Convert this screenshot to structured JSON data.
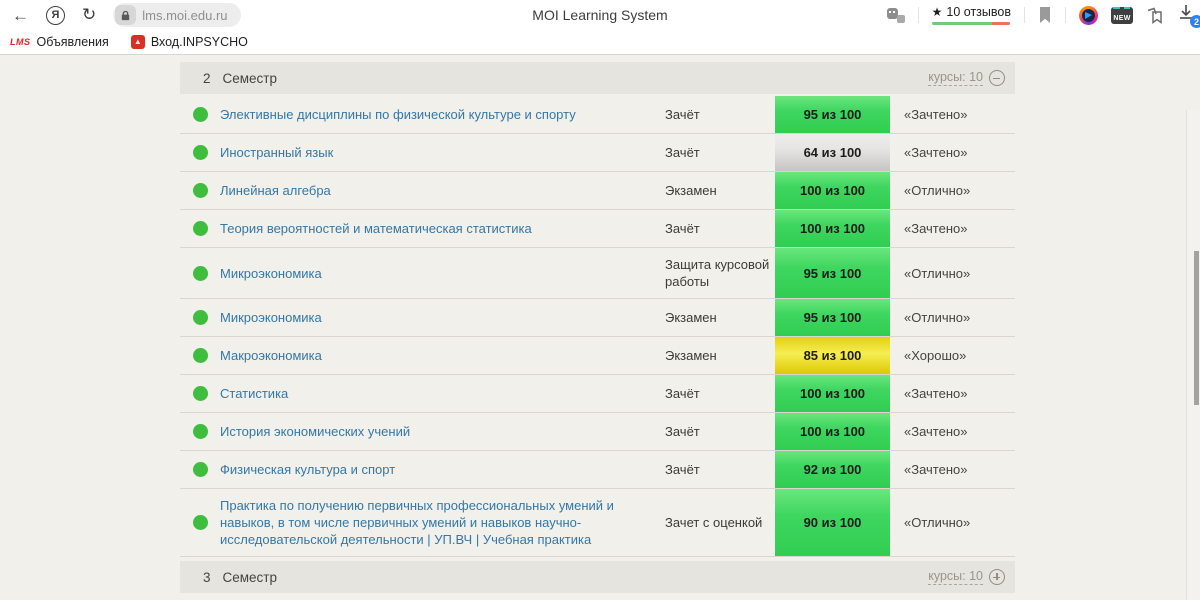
{
  "browser": {
    "page_title": "MOI Learning System",
    "url": "lms.moi.edu.ru",
    "rating": {
      "star": "★",
      "label": "10 отзывов",
      "green_color": "#76c776",
      "red_color": "#ef6e5e"
    },
    "download_badge": "2",
    "new_badge_label": "NEW",
    "bookmarks": [
      {
        "icon": "lms-logo-icon",
        "icon_text": "LMS",
        "label": "Объявления"
      },
      {
        "icon": "inpsycho-logo-icon",
        "label": "Вход.INPSYCHO"
      }
    ],
    "icons": [
      "back-icon",
      "yandex-icon",
      "refresh-icon",
      "lock-icon",
      "tableau-icon",
      "site-rating",
      "bookmark-flag-icon",
      "extension-icon",
      "new-extension-icon",
      "collections-icon",
      "download-icon"
    ]
  },
  "grades": {
    "section_top": {
      "number": "2",
      "title": "Семестр",
      "courses_label": "курсы: 10",
      "state": "expanded"
    },
    "section_bottom": {
      "number": "3",
      "title": "Семестр",
      "courses_label": "курсы: 10",
      "state": "collapsed"
    },
    "rows": [
      {
        "name": "Элективные дисциплины по физической культуре и спорту",
        "type": "Зачёт",
        "score": "95 из 100",
        "grade": "«Зачтено»",
        "color": "green"
      },
      {
        "name": "Иностранный язык",
        "type": "Зачёт",
        "score": "64 из 100",
        "grade": "«Зачтено»",
        "color": "gray"
      },
      {
        "name": "Линейная алгебра",
        "type": "Экзамен",
        "score": "100 из 100",
        "grade": "«Отлично»",
        "color": "green"
      },
      {
        "name": "Теория вероятностей и математическая статистика",
        "type": "Зачёт",
        "score": "100 из 100",
        "grade": "«Зачтено»",
        "color": "green"
      },
      {
        "name": "Микроэкономика",
        "type": "Защита курсовой работы",
        "score": "95 из 100",
        "grade": "«Отлично»",
        "color": "green"
      },
      {
        "name": "Микроэкономика",
        "type": "Экзамен",
        "score": "95 из 100",
        "grade": "«Отлично»",
        "color": "green"
      },
      {
        "name": "Макроэкономика",
        "type": "Экзамен",
        "score": "85 из 100",
        "grade": "«Хорошо»",
        "color": "yellow"
      },
      {
        "name": "Статистика",
        "type": "Зачёт",
        "score": "100 из 100",
        "grade": "«Зачтено»",
        "color": "green"
      },
      {
        "name": "История экономических учений",
        "type": "Зачёт",
        "score": "100 из 100",
        "grade": "«Зачтено»",
        "color": "green"
      },
      {
        "name": "Физическая культура и спорт",
        "type": "Зачёт",
        "score": "92 из 100",
        "grade": "«Зачтено»",
        "color": "green"
      },
      {
        "name": "Практика по получению первичных профессиональных умений и навыков, в том числе первичных умений и навыков научно-исследовательской деятельности | УП.ВЧ | Учебная практика",
        "type": "Зачет с оценкой",
        "score": "90 из 100",
        "grade": "«Отлично»",
        "color": "green"
      }
    ],
    "colors": {
      "score_green": "#3ed65f",
      "score_yellow": "#f6ee52",
      "score_gray": "#e7e5e4",
      "status_dot": "#3ebd3e",
      "link": "#3477a8"
    }
  }
}
